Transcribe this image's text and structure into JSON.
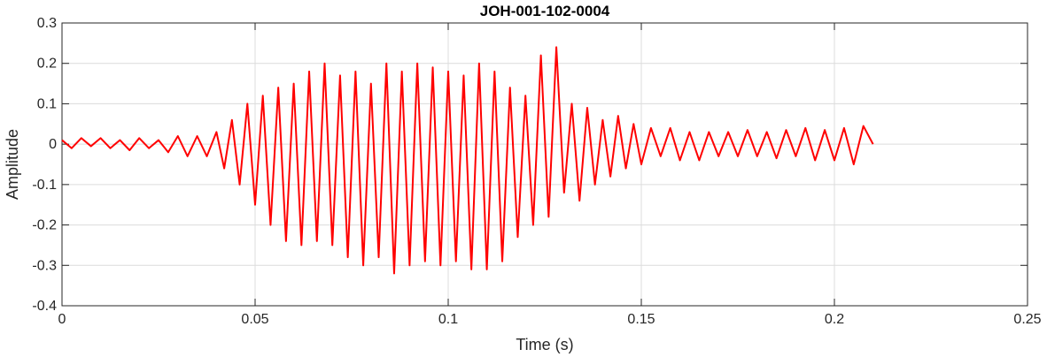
{
  "chart_data": {
    "type": "line",
    "title": "JOH-001-102-0004",
    "xlabel": "Time (s)",
    "ylabel": "Amplitude",
    "xlim": [
      0,
      0.25
    ],
    "ylim": [
      -0.4,
      0.3
    ],
    "xticks": [
      0,
      0.05,
      0.1,
      0.15,
      0.2,
      0.25
    ],
    "xtick_labels": [
      "0",
      "0.05",
      "0.1",
      "0.15",
      "0.2",
      "0.25"
    ],
    "yticks": [
      -0.4,
      -0.3,
      -0.2,
      -0.1,
      0,
      0.1,
      0.2,
      0.3
    ],
    "ytick_labels": [
      "-0.4",
      "-0.3",
      "-0.2",
      "-0.1",
      "0",
      "0.1",
      "0.2",
      "0.3"
    ],
    "grid": true,
    "series": [
      {
        "color": "#ff0000",
        "x": [
          0,
          0.0025,
          0.005,
          0.0075,
          0.01,
          0.0125,
          0.015,
          0.0175,
          0.02,
          0.0225,
          0.025,
          0.0275,
          0.03,
          0.0325,
          0.035,
          0.0375,
          0.04,
          0.042,
          0.044,
          0.046,
          0.048,
          0.05,
          0.052,
          0.054,
          0.056,
          0.058,
          0.06,
          0.062,
          0.064,
          0.066,
          0.068,
          0.07,
          0.072,
          0.074,
          0.076,
          0.078,
          0.08,
          0.082,
          0.084,
          0.086,
          0.088,
          0.09,
          0.092,
          0.094,
          0.096,
          0.098,
          0.1,
          0.102,
          0.104,
          0.106,
          0.108,
          0.11,
          0.112,
          0.114,
          0.116,
          0.118,
          0.12,
          0.122,
          0.124,
          0.126,
          0.128,
          0.13,
          0.132,
          0.134,
          0.136,
          0.138,
          0.14,
          0.142,
          0.144,
          0.146,
          0.148,
          0.15,
          0.1525,
          0.155,
          0.1575,
          0.16,
          0.1625,
          0.165,
          0.1675,
          0.17,
          0.1725,
          0.175,
          0.1775,
          0.18,
          0.1825,
          0.185,
          0.1875,
          0.19,
          0.1925,
          0.195,
          0.1975,
          0.2,
          0.2025,
          0.205,
          0.2075,
          0.21
        ],
        "y": [
          0.01,
          -0.01,
          0.015,
          -0.005,
          0.015,
          -0.01,
          0.01,
          -0.015,
          0.015,
          -0.01,
          0.01,
          -0.02,
          0.02,
          -0.03,
          0.02,
          -0.03,
          0.03,
          -0.06,
          0.06,
          -0.1,
          0.1,
          -0.15,
          0.12,
          -0.2,
          0.14,
          -0.24,
          0.15,
          -0.25,
          0.18,
          -0.24,
          0.2,
          -0.25,
          0.17,
          -0.28,
          0.18,
          -0.3,
          0.15,
          -0.28,
          0.2,
          -0.32,
          0.18,
          -0.3,
          0.2,
          -0.29,
          0.19,
          -0.3,
          0.18,
          -0.29,
          0.17,
          -0.31,
          0.2,
          -0.31,
          0.18,
          -0.29,
          0.14,
          -0.23,
          0.12,
          -0.2,
          0.22,
          -0.18,
          0.24,
          -0.12,
          0.1,
          -0.14,
          0.09,
          -0.1,
          0.06,
          -0.08,
          0.07,
          -0.06,
          0.05,
          -0.05,
          0.04,
          -0.03,
          0.04,
          -0.04,
          0.03,
          -0.04,
          0.03,
          -0.03,
          0.03,
          -0.03,
          0.035,
          -0.03,
          0.03,
          -0.035,
          0.035,
          -0.03,
          0.04,
          -0.04,
          0.035,
          -0.04,
          0.04,
          -0.05,
          0.045,
          0.0
        ]
      }
    ]
  }
}
